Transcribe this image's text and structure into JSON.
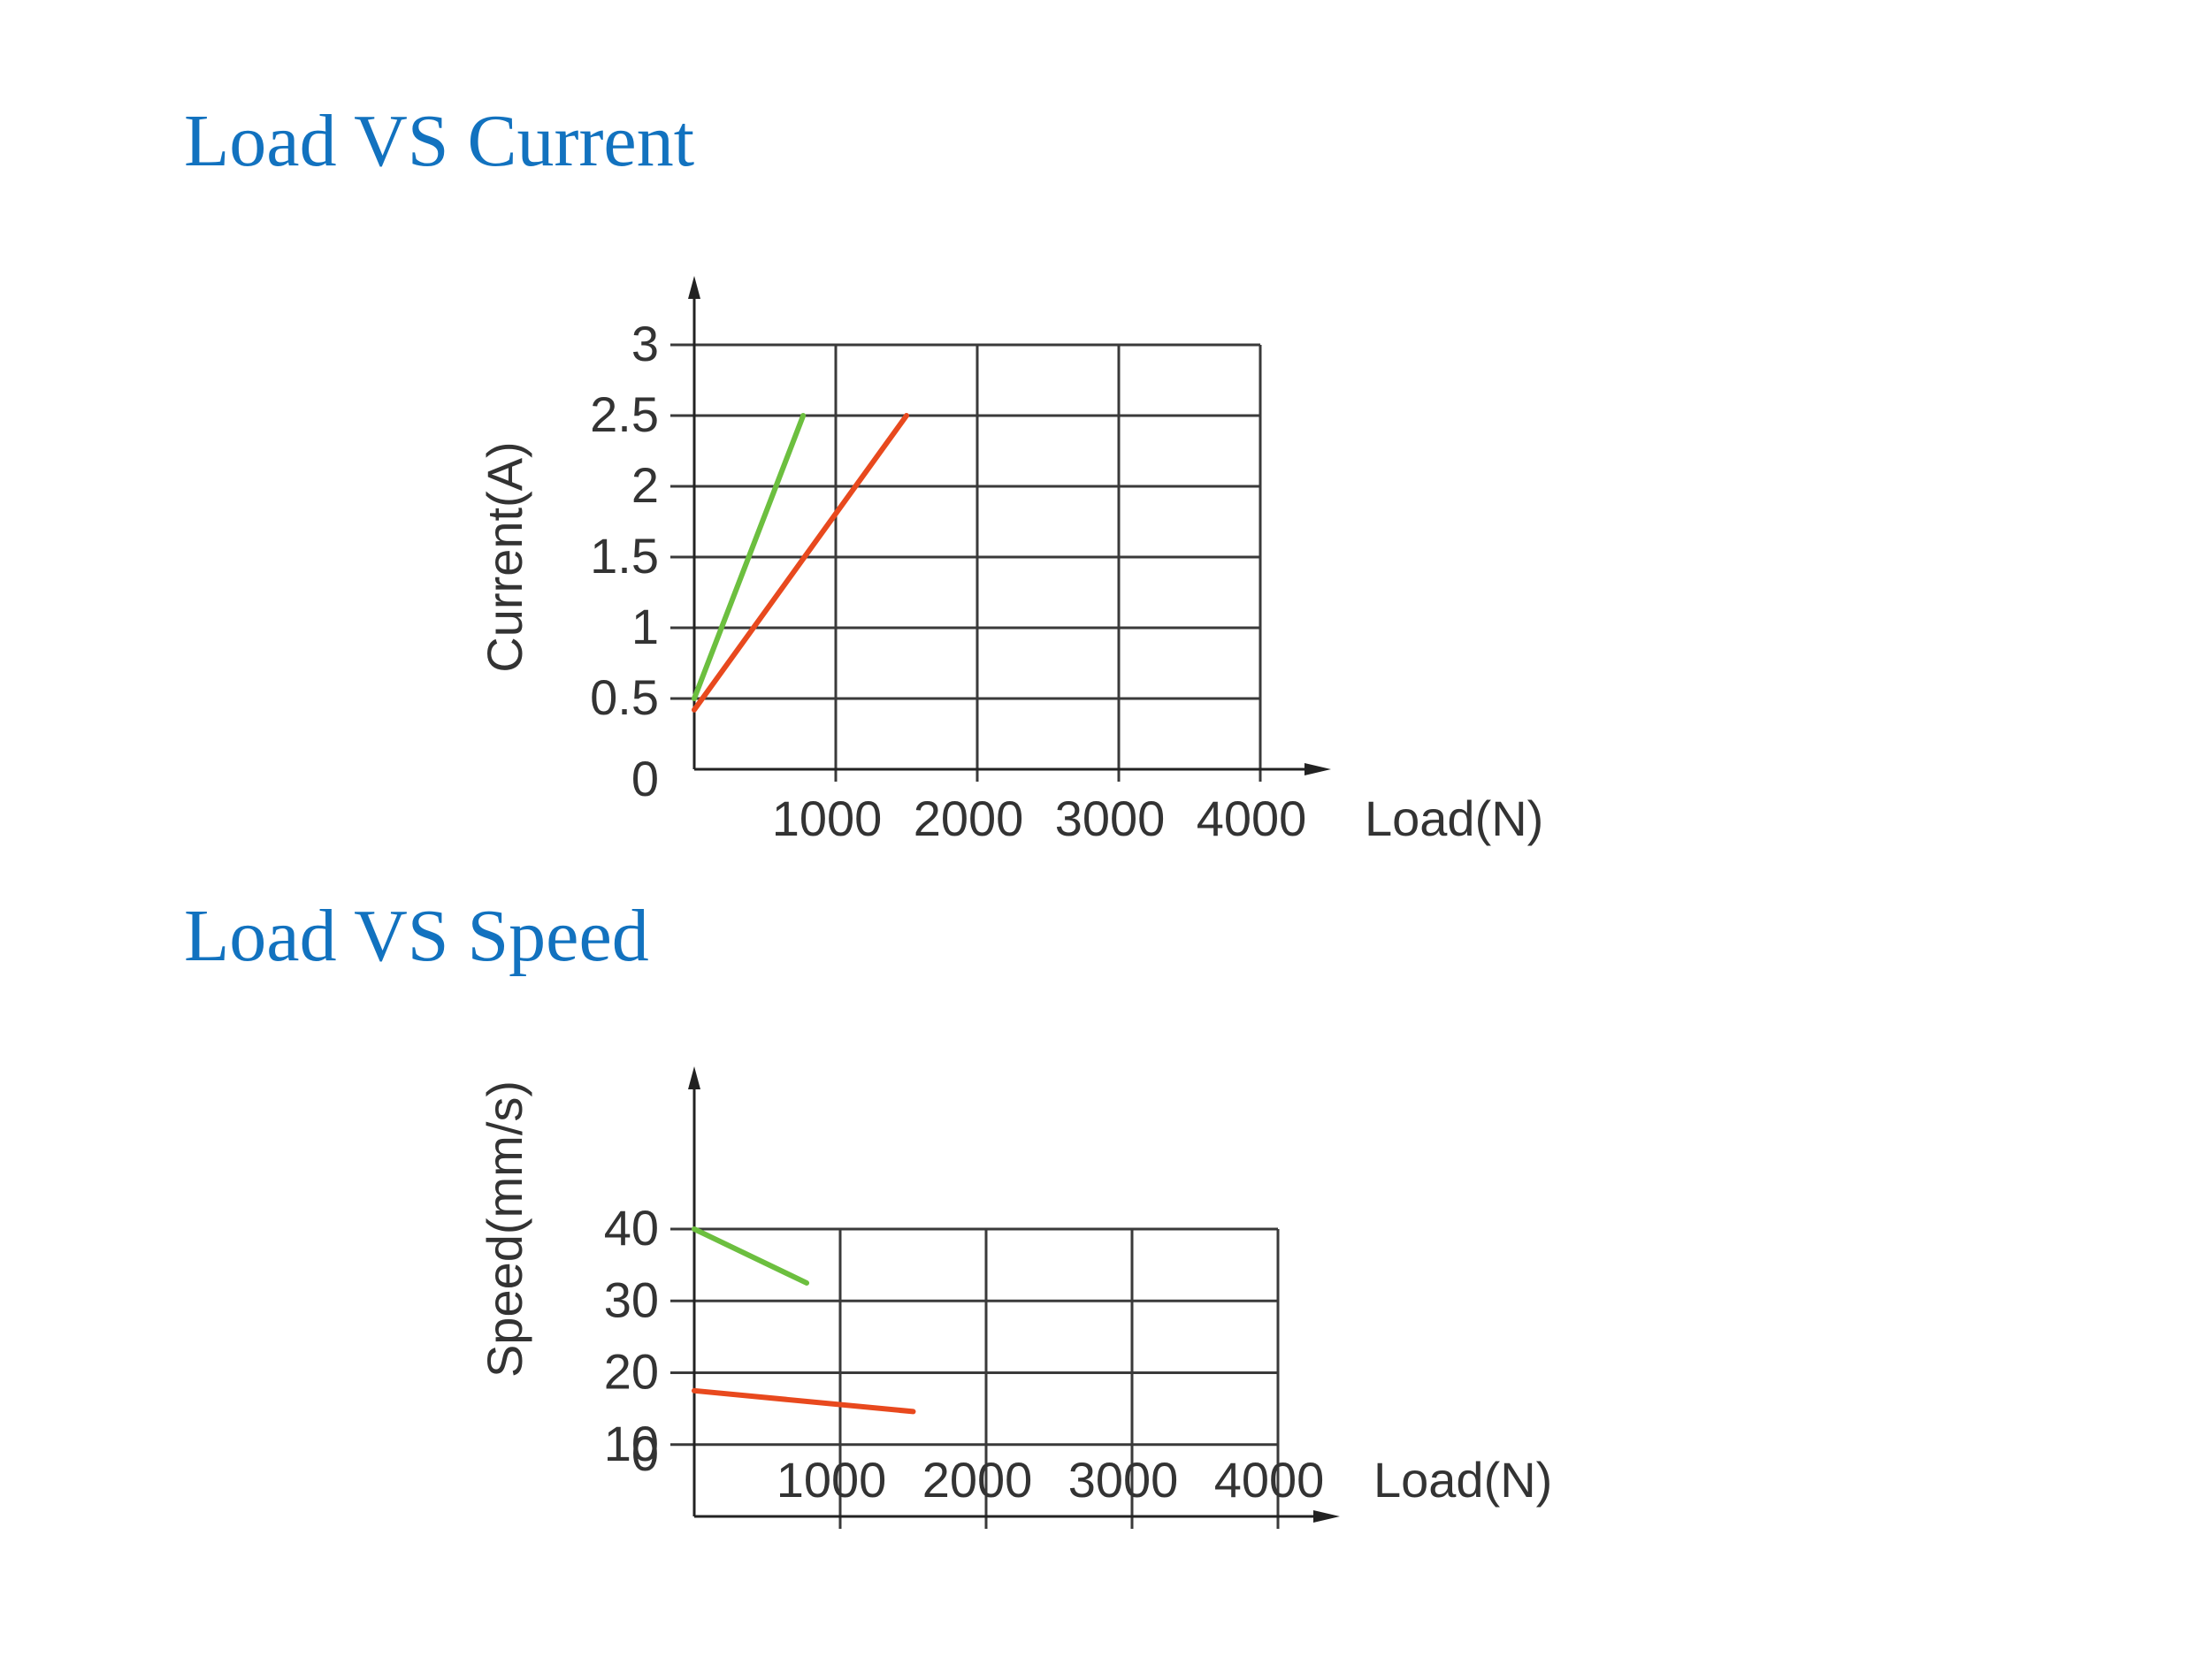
{
  "sections": [
    {
      "title": "Load VS Current"
    },
    {
      "title": "Load VS Speed"
    }
  ],
  "colors": {
    "title": "#1272bf",
    "green": "#6cbf3f",
    "red": "#e8491e",
    "grid": "#3a3a3a",
    "text": "#333333"
  },
  "chart_data": [
    {
      "type": "line",
      "title": "Load VS Current",
      "xlabel": "Load(N)",
      "ylabel": "Current(A)",
      "x_ticks": [
        "1000",
        "2000",
        "3000",
        "4000"
      ],
      "y_ticks": [
        "0.5",
        "1",
        "1.5",
        "2",
        "2.5",
        "3"
      ],
      "zero_label": "0",
      "xlim": [
        0,
        4000
      ],
      "ylim": [
        0,
        3
      ],
      "grid": true,
      "series": [
        {
          "color": "#6cbf3f",
          "x": [
            0,
            770
          ],
          "y": [
            0.5,
            2.5
          ]
        },
        {
          "color": "#e8491e",
          "x": [
            0,
            1500
          ],
          "y": [
            0.42,
            2.5
          ]
        }
      ]
    },
    {
      "type": "line",
      "title": "Load VS Speed",
      "xlabel": "Load(N)",
      "ylabel": "Speed(mm/s)",
      "x_ticks": [
        "1000",
        "2000",
        "3000",
        "4000"
      ],
      "y_ticks": [
        "10",
        "20",
        "30",
        "40"
      ],
      "zero_label": "0",
      "xlim": [
        0,
        4000
      ],
      "ylim": [
        0,
        40
      ],
      "grid": true,
      "series": [
        {
          "color": "#6cbf3f",
          "x": [
            0,
            770
          ],
          "y": [
            40,
            32.5
          ]
        },
        {
          "color": "#e8491e",
          "x": [
            0,
            1500
          ],
          "y": [
            17.5,
            14.6
          ]
        }
      ]
    }
  ]
}
